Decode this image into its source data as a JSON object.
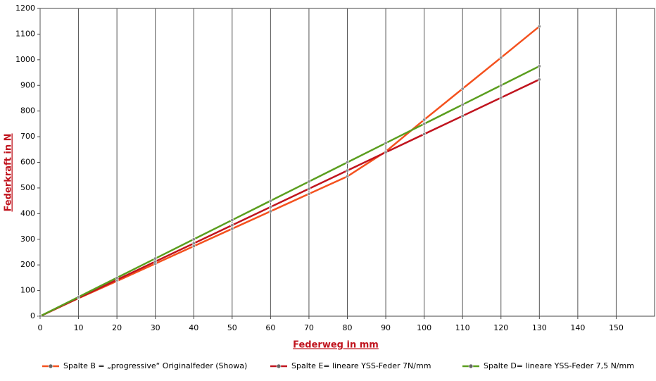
{
  "chart_data": {
    "type": "line",
    "x_label": "Federweg in mm",
    "y_label": "Federkraft in N",
    "x": [
      0,
      10,
      20,
      30,
      40,
      50,
      60,
      70,
      80,
      90,
      100,
      110,
      120,
      130
    ],
    "series": [
      {
        "name": "Spalte B = „progressive“ Originalfeder (Showa)",
        "color": "#f4511e",
        "values": [
          0,
          70,
          137,
          205,
          273,
          341,
          409,
          477,
          545,
          642,
          766,
          887,
          1008,
          1130
        ]
      },
      {
        "name": "Spalte E= lineare YSS-Feder 7N/mm",
        "color": "#c0141e",
        "values": [
          0,
          71,
          142,
          213,
          284,
          355,
          426,
          497,
          568,
          639,
          710,
          781,
          852,
          923
        ]
      },
      {
        "name": "Spalte D= lineare YSS-Feder 7,5 N/mm",
        "color": "#5a9e1e",
        "values": [
          0,
          75,
          150,
          225,
          300,
          375,
          450,
          525,
          600,
          675,
          750,
          825,
          900,
          975
        ]
      }
    ],
    "xlim": [
      0,
      160
    ],
    "xticks": [
      0,
      10,
      20,
      30,
      40,
      50,
      60,
      70,
      80,
      90,
      100,
      110,
      120,
      130,
      140,
      150
    ],
    "ylim": [
      0,
      1200
    ],
    "yticks": [
      0,
      100,
      200,
      300,
      400,
      500,
      600,
      700,
      800,
      900,
      1000,
      1100,
      1200
    ],
    "grid": "x",
    "legend": "bottom"
  }
}
